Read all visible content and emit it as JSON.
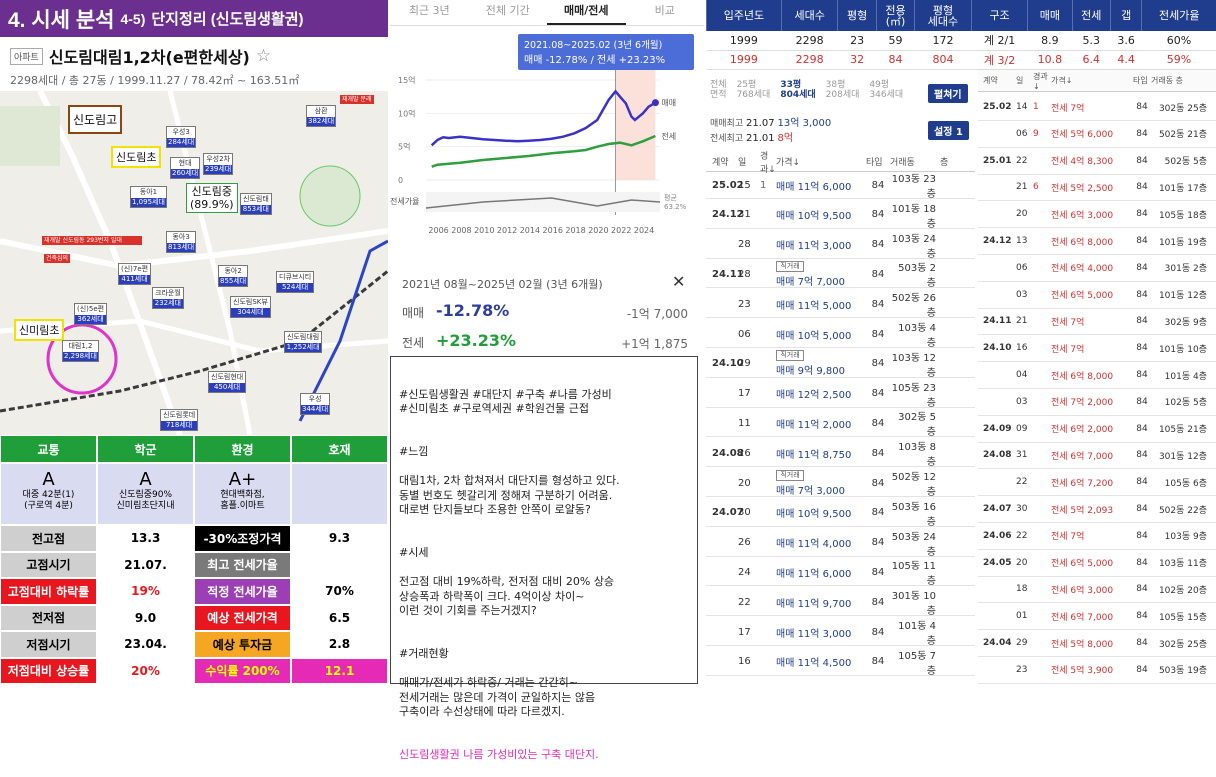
{
  "header": {
    "title_main": "4. 시세 분석",
    "title_num": "4-5)",
    "title_rest": "단지정리 (신도림생활권)"
  },
  "apartment": {
    "tag": "아파트",
    "name": "신도림대림1,2차(e편한세상)",
    "star": "☆",
    "summary": "2298세대 / 총 27동 / 1999.11.27 / 78.42㎡ ~ 163.51㎡"
  },
  "map": {
    "schools": [
      "신도림고",
      "신도림초",
      "신도림중\n(89.9%)",
      "신미림초"
    ],
    "complexes": [
      {
        "name": "우성3",
        "units": "284세대"
      },
      {
        "name": "현대",
        "units": "260세대"
      },
      {
        "name": "우성2차",
        "units": "239세대"
      },
      {
        "name": "동아1",
        "units": "1,095세대"
      },
      {
        "name": "신도림태",
        "units": "853세대"
      },
      {
        "name": "동아3",
        "units": "813세대"
      },
      {
        "name": "(신)7e편",
        "units": "411세대"
      },
      {
        "name": "동아2",
        "units": "855세대"
      },
      {
        "name": "디큐브시티",
        "units": "524세대"
      },
      {
        "name": "크라운월",
        "units": "232세대"
      },
      {
        "name": "신도림SK뷰",
        "units": "304세대"
      },
      {
        "name": "(신)5e편",
        "units": "362세대"
      },
      {
        "name": "대림1,2",
        "units": "2,298세대"
      },
      {
        "name": "신도림대림",
        "units": "1,252세대"
      },
      {
        "name": "신도림현대",
        "units": "450세대"
      },
      {
        "name": "우성",
        "units": "344세대"
      },
      {
        "name": "신도림롯데",
        "units": "718세대"
      },
      {
        "name": "삼환",
        "units": "382세대"
      }
    ],
    "red_tags": [
      "재개발 신도림동 293번지 일대",
      "건축심의",
      "재개발 문래"
    ]
  },
  "scores": {
    "headers": [
      "교통",
      "학군",
      "환경",
      "호재"
    ],
    "grades": [
      "A",
      "A",
      "A+",
      ""
    ],
    "grade_notes": [
      "대중 42분(1)\n(구로역 4분)",
      "신도림중90%\n신미림초단지내",
      "현대백화점,\n홈플.이마트",
      ""
    ],
    "rows": [
      [
        "전고점",
        "13.3",
        "-30%조정가격",
        "9.3"
      ],
      [
        "고점시기",
        "21.07.",
        "최고 전세가율",
        ""
      ],
      [
        "고점대비 하락률",
        "19%",
        "적정 전세가율",
        "70%"
      ],
      [
        "전저점",
        "9.0",
        "예상 전세가격",
        "6.5"
      ],
      [
        "저점시기",
        "23.04.",
        "예상 투자금",
        "2.8"
      ],
      [
        "저점대비 상승률",
        "20%",
        "수익률 200%",
        "12.1"
      ]
    ]
  },
  "tabs": [
    "최근 3년",
    "전체 기간",
    "매매/전세",
    "비교"
  ],
  "chart_data": {
    "type": "line",
    "tooltip_period": "2021.08~2025.02 (3년 6개월)",
    "tooltip_values": "매매 -12.78% / 전세 +23.23%",
    "x_ticks": [
      "2006",
      "2008",
      "2010",
      "2012",
      "2014",
      "2016",
      "2018",
      "2020",
      "2022",
      "2024"
    ],
    "y_ticks": [
      "15억",
      "10억",
      "5억",
      "0"
    ],
    "ylim": [
      0,
      15
    ],
    "series": [
      {
        "name": "매매",
        "color": "#3a32c8",
        "x": [
          2005.5,
          2006,
          2006.5,
          2007,
          2008,
          2009,
          2010,
          2011,
          2012,
          2013,
          2014,
          2015,
          2016,
          2017,
          2018,
          2019,
          2020,
          2020.5,
          2021,
          2021.6,
          2022,
          2022.5,
          2023,
          2023.3,
          2024,
          2024.5,
          2025.1
        ],
        "values": [
          5.2,
          6.0,
          6.4,
          6.3,
          6.5,
          6.3,
          6.1,
          6.0,
          5.9,
          5.8,
          5.9,
          6.0,
          6.2,
          6.5,
          7.0,
          7.8,
          9.0,
          10.5,
          12.0,
          13.3,
          12.5,
          11.5,
          9.5,
          9.0,
          10.0,
          11.0,
          11.6
        ]
      },
      {
        "name": "전세",
        "color": "#2e9e3e",
        "x": [
          2005.5,
          2006,
          2008,
          2010,
          2012,
          2014,
          2016,
          2018,
          2019,
          2020,
          2021,
          2022,
          2023,
          2024,
          2025.1
        ],
        "values": [
          2.0,
          2.3,
          2.6,
          3.0,
          3.3,
          3.6,
          4.0,
          4.3,
          4.5,
          5.0,
          5.4,
          5.6,
          5.2,
          5.8,
          6.6
        ]
      }
    ],
    "gap_label": "전세가율",
    "gap_value": "평균\n63.2%"
  },
  "midstats": {
    "period": "2021년 08월~2025년 02월 (3년 6개월)",
    "close": "✕",
    "sale_label": "매매",
    "sale_pct": "-12.78%",
    "sale_amt": "-1억 7,000",
    "jeonse_label": "전세",
    "jeonse_pct": "+23.23%",
    "jeonse_amt": "+1억 1,875"
  },
  "note": {
    "tags": "#신도림생활권 #대단지 #구축 #나름 가성비\n#신미림초 #구로역세권 #학원건물 근접",
    "feel_title": "#느낌",
    "feel": "대림1차, 2차 합쳐져서 대단지를 형성하고 있다.\n동별 번호도 헷갈리게 정해져 구분하기 어려움.\n대로변 단지들보다 조용한 안쪽이 로얄동?",
    "price_title": "#시세",
    "price": "전고점 대비 19%하락, 전저점 대비 20% 상승\n상승폭과 하락폭이 크다. 4억이상 차이~\n이런 것이 기회를 주는거겠지?",
    "trade_title": "#거래현황",
    "trade": "매매가/전세가 하락중/ 거래는 간간히~\n전세거래는 많은데 가격이 균일하지는 않음\n구축이라 수선상태에 따라 다르겠지.",
    "conclusion": "신도림생활권 나름 가성비있는 구축 대단지."
  },
  "top_table": {
    "headers": [
      "입주년도",
      "세대수",
      "평형",
      "전용\n(㎡)",
      "평형\n세대수",
      "구조",
      "매매",
      "전세",
      "갭",
      "전세가율"
    ],
    "rows": [
      [
        "1999",
        "2298",
        "23",
        "59",
        "172",
        "계 2/1",
        "8.9",
        "5.3",
        "3.6",
        "60%"
      ],
      [
        "1999",
        "2298",
        "32",
        "84",
        "804",
        "계 3/2",
        "10.8",
        "6.4",
        "4.4",
        "59%"
      ]
    ]
  },
  "left_panel": {
    "size_tabs": [
      {
        "label": "전체",
        "sub": "면적"
      },
      {
        "label": "25평",
        "sub": "768세대"
      },
      {
        "label": "33평",
        "sub": "804세대"
      },
      {
        "label": "38평",
        "sub": "208세대"
      },
      {
        "label": "49평",
        "sub": "346세대"
      }
    ],
    "expand_btn": "펼쳐기",
    "setting_btn": "설정 1",
    "sale_high_label": "매매최고",
    "sale_high_date": "21.07",
    "sale_high_val": "13억 3,000",
    "jeonse_high_label": "전세최고",
    "jeonse_high_date": "21.01",
    "jeonse_high_val": "8억",
    "col_headers": [
      "계약",
      "일",
      "경과↓",
      "가격↓",
      "타입",
      "거래동",
      "층"
    ],
    "rows": [
      {
        "ym": "25.02",
        "d": "15",
        "c": "1",
        "badge": "",
        "price": "매매 11억 6,000",
        "type": "84",
        "floor": "103동 23층"
      },
      {
        "ym": "24.12",
        "d": "31",
        "c": "",
        "badge": "",
        "price": "매매 10억 9,500",
        "type": "84",
        "floor": "101동 18층"
      },
      {
        "ym": "",
        "d": "28",
        "c": "",
        "badge": "",
        "price": "매매 11억 3,000",
        "type": "84",
        "floor": "103동 24층"
      },
      {
        "ym": "24.11",
        "d": "28",
        "c": "",
        "badge": "직거래",
        "price": "매매 7억 7,000",
        "type": "84",
        "floor": "503동 2층"
      },
      {
        "ym": "",
        "d": "23",
        "c": "",
        "badge": "",
        "price": "매매 11억 5,000",
        "type": "84",
        "floor": "502동 26층"
      },
      {
        "ym": "",
        "d": "06",
        "c": "",
        "badge": "",
        "price": "매매 10억 5,000",
        "type": "84",
        "floor": "103동 4층"
      },
      {
        "ym": "24.10",
        "d": "29",
        "c": "",
        "badge": "직거래",
        "price": "매매 9억 9,800",
        "type": "84",
        "floor": "103동 12층"
      },
      {
        "ym": "",
        "d": "17",
        "c": "",
        "badge": "",
        "price": "매매 12억 2,500",
        "type": "84",
        "floor": "105동 23층"
      },
      {
        "ym": "",
        "d": "11",
        "c": "",
        "badge": "",
        "price": "매매 11억 2,000",
        "type": "84",
        "floor": "302동 5층"
      },
      {
        "ym": "24.08",
        "d": "26",
        "c": "",
        "badge": "",
        "price": "매매 11억 8,750",
        "type": "84",
        "floor": "103동 8층"
      },
      {
        "ym": "",
        "d": "20",
        "c": "",
        "badge": "직거래",
        "price": "매매 7억 3,000",
        "type": "84",
        "floor": "502동 12층"
      },
      {
        "ym": "24.07",
        "d": "30",
        "c": "",
        "badge": "",
        "price": "매매 10억 9,500",
        "type": "84",
        "floor": "503동 16층"
      },
      {
        "ym": "",
        "d": "26",
        "c": "",
        "badge": "",
        "price": "매매 11억 4,000",
        "type": "84",
        "floor": "503동 24층"
      },
      {
        "ym": "",
        "d": "24",
        "c": "",
        "badge": "",
        "price": "매매 11억 6,000",
        "type": "84",
        "floor": "105동 11층"
      },
      {
        "ym": "",
        "d": "22",
        "c": "",
        "badge": "",
        "price": "매매 11억 9,700",
        "type": "84",
        "floor": "301동 10층"
      },
      {
        "ym": "",
        "d": "17",
        "c": "",
        "badge": "",
        "price": "매매 11억 3,000",
        "type": "84",
        "floor": "101동 4층"
      },
      {
        "ym": "",
        "d": "16",
        "c": "",
        "badge": "",
        "price": "매매 11억 4,500",
        "type": "84",
        "floor": "105동 7층"
      }
    ]
  },
  "right_panel": {
    "col_headers": [
      "계약",
      "일",
      "경과↓",
      "가격↓",
      "타입",
      "거래동 층"
    ],
    "rows": [
      {
        "ym": "25.02",
        "d": "14",
        "c": "1",
        "price": "전세 7억",
        "type": "84",
        "floor": "302동 25층"
      },
      {
        "ym": "",
        "d": "06",
        "c": "9",
        "price": "전세 5억 6,000",
        "type": "84",
        "floor": "502동 21층"
      },
      {
        "ym": "25.01",
        "d": "22",
        "c": "",
        "price": "전세 4억 8,300",
        "type": "84",
        "floor": "502동 5층"
      },
      {
        "ym": "",
        "d": "21",
        "c": "6",
        "price": "전세 5억 2,500",
        "type": "84",
        "floor": "101동 17층"
      },
      {
        "ym": "",
        "d": "20",
        "c": "",
        "price": "전세 6억 3,000",
        "type": "84",
        "floor": "105동 18층"
      },
      {
        "ym": "24.12",
        "d": "13",
        "c": "",
        "price": "전세 6억 8,000",
        "type": "84",
        "floor": "101동 19층"
      },
      {
        "ym": "",
        "d": "06",
        "c": "",
        "price": "전세 6억 4,000",
        "type": "84",
        "floor": "301동 2층"
      },
      {
        "ym": "",
        "d": "03",
        "c": "",
        "price": "전세 6억 5,000",
        "type": "84",
        "floor": "101동 12층"
      },
      {
        "ym": "24.11",
        "d": "21",
        "c": "",
        "price": "전세 7억",
        "type": "84",
        "floor": "302동 9층"
      },
      {
        "ym": "24.10",
        "d": "16",
        "c": "",
        "price": "전세 7억",
        "type": "84",
        "floor": "101동 10층"
      },
      {
        "ym": "",
        "d": "04",
        "c": "",
        "price": "전세 6억 8,000",
        "type": "84",
        "floor": "101동 4층"
      },
      {
        "ym": "",
        "d": "03",
        "c": "",
        "price": "전세 7억 2,000",
        "type": "84",
        "floor": "102동 5층"
      },
      {
        "ym": "24.09",
        "d": "09",
        "c": "",
        "price": "전세 6억 2,000",
        "type": "84",
        "floor": "105동 21층"
      },
      {
        "ym": "24.08",
        "d": "31",
        "c": "",
        "price": "전세 6억 7,000",
        "type": "84",
        "floor": "301동 12층"
      },
      {
        "ym": "",
        "d": "22",
        "c": "",
        "price": "전세 6억 7,200",
        "type": "84",
        "floor": "105동 6층"
      },
      {
        "ym": "24.07",
        "d": "30",
        "c": "",
        "price": "전세 5억 2,093",
        "type": "84",
        "floor": "502동 22층"
      },
      {
        "ym": "24.06",
        "d": "22",
        "c": "",
        "price": "전세 7억",
        "type": "84",
        "floor": "103동 9층"
      },
      {
        "ym": "24.05",
        "d": "20",
        "c": "",
        "price": "전세 6억 5,000",
        "type": "84",
        "floor": "103동 11층"
      },
      {
        "ym": "",
        "d": "18",
        "c": "",
        "price": "전세 6억 3,000",
        "type": "84",
        "floor": "102동 20층"
      },
      {
        "ym": "",
        "d": "01",
        "c": "",
        "price": "전세 6억 7,000",
        "type": "84",
        "floor": "105동 15층"
      },
      {
        "ym": "24.04",
        "d": "29",
        "c": "",
        "price": "전세 5억 8,000",
        "type": "84",
        "floor": "302동 25층"
      },
      {
        "ym": "",
        "d": "23",
        "c": "",
        "price": "전세 5억 3,900",
        "type": "84",
        "floor": "503동 19층"
      }
    ]
  }
}
